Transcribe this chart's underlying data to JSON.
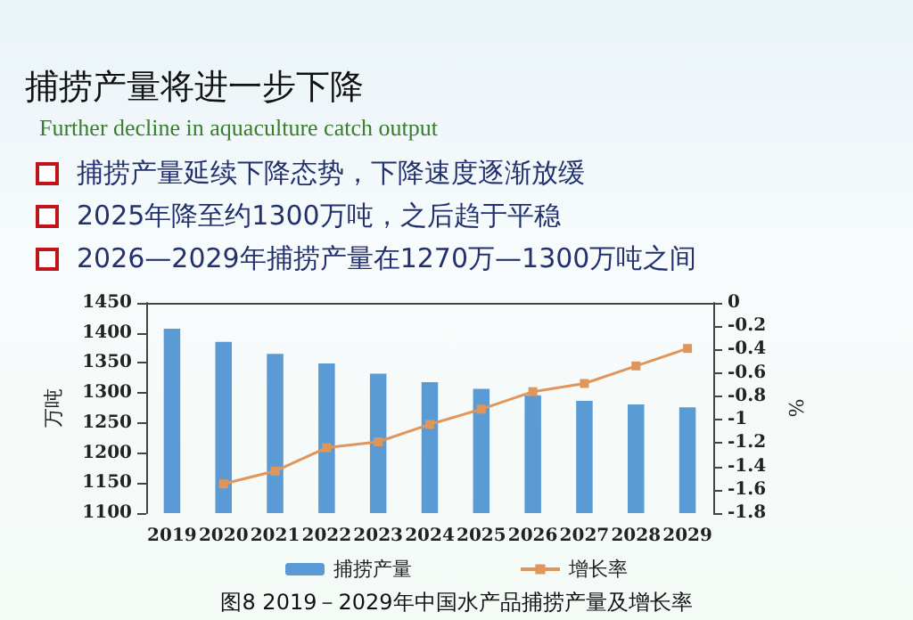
{
  "chart_data": {
    "type": "bar",
    "title": "捕捞产量将进一步下降",
    "subtitle": "Further decline in aquaculture catch output",
    "annotations": [
      "捕捞产量延续下降态势，下降速度逐渐放缓",
      "2025年降至约1300万吨，之后趋于平稳",
      "2026—2029年捕捞产量在1270万—1300万吨之间",
      "图8   2019－2029年中国水产品捕捞产量及增长率"
    ],
    "categories": [
      "2019",
      "2020",
      "2021",
      "2022",
      "2023",
      "2024",
      "2025",
      "2026",
      "2027",
      "2028",
      "2029"
    ],
    "series": [
      {
        "name": "捕捞产量",
        "color": "#5b9bd5",
        "values": [
          1407,
          1385,
          1365,
          1349,
          1332,
          1318,
          1307,
          1296,
          1287,
          1281,
          1276
        ]
      },
      {
        "name": "增长率",
        "type": "line",
        "axis": "y2",
        "color": "#e0965a",
        "values": [
          null,
          -1.55,
          -1.44,
          -1.24,
          -1.19,
          -1.04,
          -0.91,
          -0.76,
          -0.69,
          -0.54,
          -0.39
        ]
      }
    ],
    "ylabel": "万吨",
    "y2label": "%",
    "ylim": [
      1100,
      1450
    ],
    "yticks": [
      1100,
      1150,
      1200,
      1250,
      1300,
      1350,
      1400,
      1450
    ],
    "y2lim": [
      -1.8,
      0
    ],
    "y2ticks": [
      -1.8,
      -1.6,
      -1.4,
      -1.2,
      -1,
      -0.8,
      -0.6,
      -0.4,
      -0.2,
      0
    ],
    "legend": "bottom",
    "marker": "square",
    "grid": false
  }
}
